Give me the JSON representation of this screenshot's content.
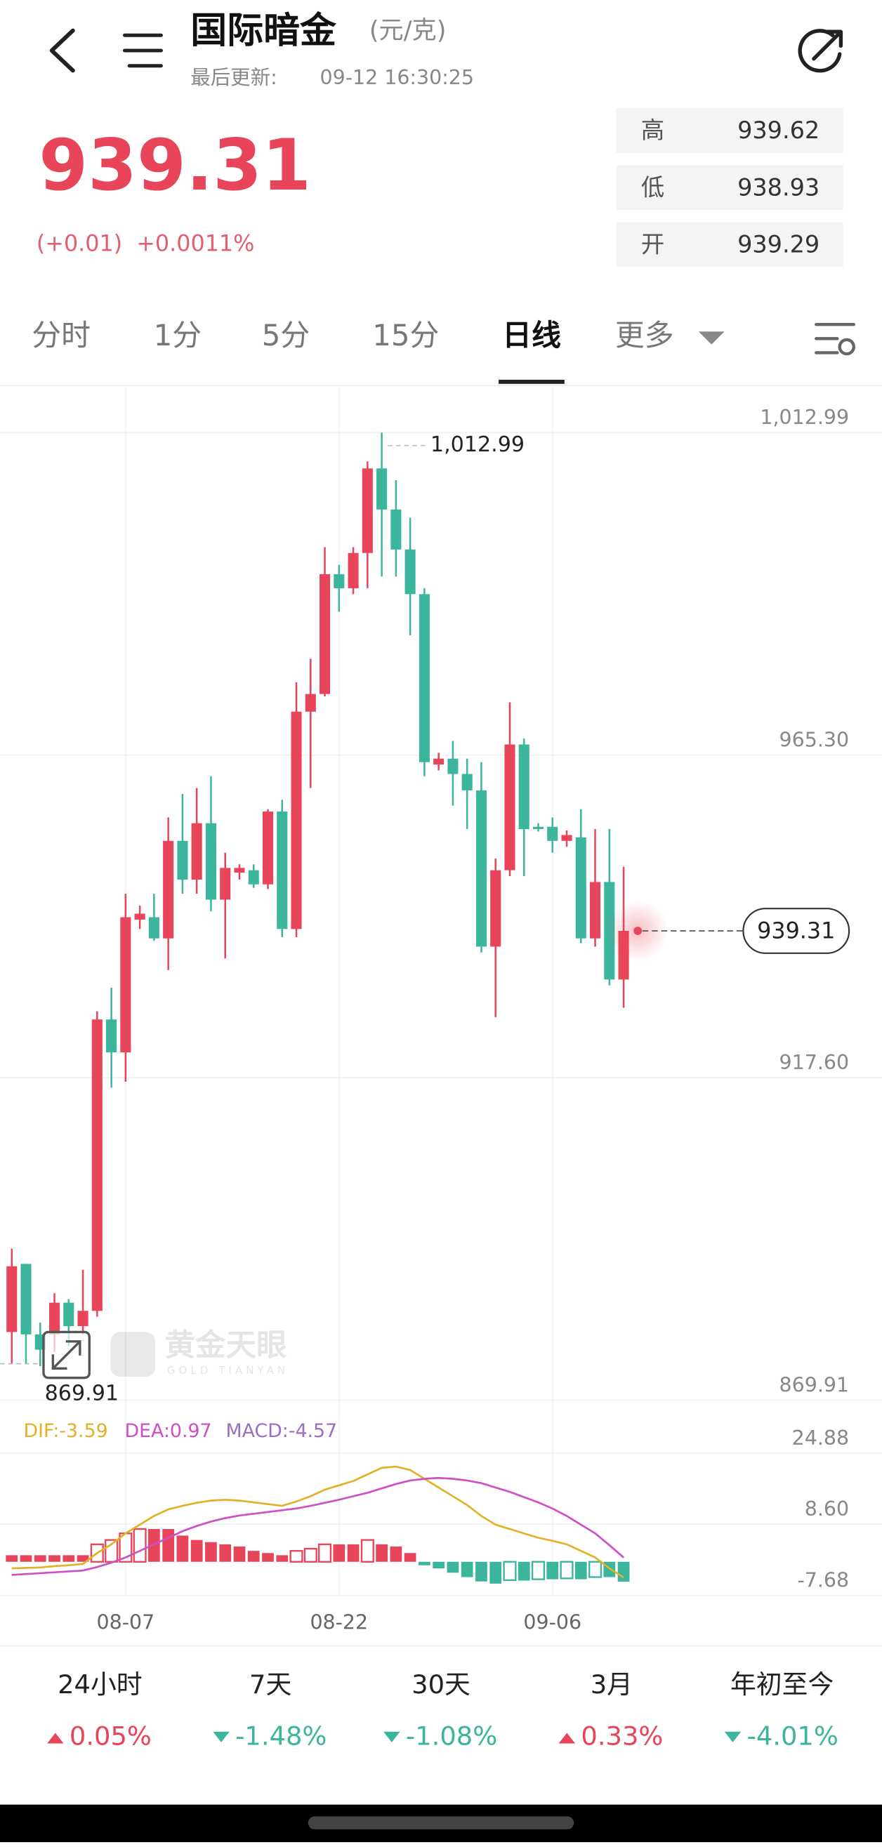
{
  "header": {
    "title": "国际暗金",
    "unit": "(元/克)",
    "updated_label": "最后更新:",
    "updated_time": "09-12 16:30:25"
  },
  "quote": {
    "price": "939.31",
    "change": "(+0.01)",
    "change_pct": "+0.0011%",
    "stats": [
      {
        "label": "高",
        "value": "939.62"
      },
      {
        "label": "低",
        "value": "938.93"
      },
      {
        "label": "开",
        "value": "939.29"
      }
    ]
  },
  "tabs": [
    "分时",
    "1分",
    "5分",
    "15分",
    "日线",
    "更多"
  ],
  "active_tab": 4,
  "watermark": {
    "title": "黄金天眼",
    "subtitle": "GOLD TIANYAN"
  },
  "chart_data": [
    {
      "type": "candlestick",
      "up_color": "#e8445a",
      "down_color": "#3bb59c",
      "grid": true,
      "ylim": [
        869.91,
        1012.99
      ],
      "yticks": [
        {
          "value": 1012.99,
          "label": "1,012.99"
        },
        {
          "value": 965.3,
          "label": "965.30"
        },
        {
          "value": 917.6,
          "label": "917.60"
        },
        869.91
      ],
      "open": [
        879.99,
        890.07,
        879.64,
        879.64,
        884.33,
        880.86,
        883.12,
        926.21,
        921.34,
        940.98,
        941.33,
        938.2,
        952.62,
        946.89,
        955.23,
        943.93,
        947.93,
        948.28,
        946.19,
        956.96,
        939.59,
        971.73,
        974.34,
        992.06,
        989.98,
        995.19,
        1007.7,
        1001.62,
        995.71,
        989.11,
        963.91,
        964.78,
        962.52,
        960.09,
        936.98,
        948.28,
        966.87,
        954.7,
        954.7,
        952.62,
        953.14,
        938.2,
        946.54,
        932.12
      ],
      "high": [
        892.32,
        890.07,
        881.38,
        885.72,
        884.85,
        889.2,
        927.42,
        930.9,
        944.8,
        943.06,
        944.8,
        956.09,
        959.57,
        960.44,
        962.18,
        950.88,
        949.15,
        949.15,
        957.31,
        958.7,
        976.08,
        979.55,
        996.06,
        993.45,
        996.06,
        1008.74,
        1012.99,
        1005.96,
        1000.4,
        989.98,
        965.65,
        967.39,
        964.78,
        964.26,
        950.01,
        973.12,
        967.74,
        955.23,
        956.09,
        954.18,
        957.31,
        954.36,
        954.36,
        948.8
      ],
      "low": [
        875.3,
        875.3,
        874.95,
        877.03,
        877.9,
        879.64,
        882.25,
        916.13,
        917.0,
        939.59,
        937.85,
        933.51,
        944.8,
        944.8,
        942.19,
        935.24,
        946.89,
        945.67,
        945.5,
        938.37,
        938.37,
        960.44,
        973.99,
        986.5,
        989.11,
        989.98,
        991.71,
        991.71,
        983.03,
        962.18,
        963.04,
        957.83,
        954.36,
        936.11,
        926.56,
        947.41,
        947.41,
        954.01,
        950.88,
        951.75,
        937.5,
        936.98,
        931.25,
        927.95
      ],
      "close": [
        889.72,
        879.64,
        877.38,
        884.33,
        880.86,
        883.12,
        926.21,
        921.34,
        941.33,
        941.85,
        938.2,
        952.62,
        946.89,
        955.23,
        943.93,
        948.62,
        948.62,
        946.19,
        956.96,
        939.59,
        971.73,
        974.34,
        992.06,
        989.98,
        995.19,
        1007.7,
        1001.62,
        995.71,
        989.11,
        964.26,
        964.78,
        962.52,
        960.09,
        936.98,
        948.28,
        966.87,
        954.36,
        954.36,
        952.62,
        953.49,
        938.2,
        946.54,
        932.12,
        939.31
      ],
      "max_label": {
        "value": 1012.99,
        "label": "1,012.99"
      },
      "min_value": 869.91,
      "last_value": 939.31
    },
    {
      "type": "macd",
      "up_color": "#e8445a",
      "down_color": "#3bb59c",
      "legend": [
        "DIF:-3.59",
        "DEA:0.97",
        "MACD:-4.57"
      ],
      "ylim": [
        -7.68,
        24.88
      ],
      "yticks": [
        24.88,
        {
          "value": 8.6,
          "label": "8.60"
        },
        -7.68
      ],
      "categories": [
        null,
        null,
        null,
        null,
        null,
        null,
        null,
        null,
        "08-07",
        null,
        null,
        null,
        null,
        null,
        null,
        null,
        null,
        null,
        null,
        null,
        null,
        null,
        null,
        "08-22",
        null,
        null,
        null,
        null,
        null,
        null,
        null,
        null,
        null,
        null,
        null,
        null,
        null,
        null,
        "09-06",
        null,
        null,
        null,
        null,
        null
      ],
      "series": [
        {
          "name": "DIF",
          "color": "#e2b126",
          "values": [
            -1.5,
            -1.4,
            -1.3,
            -1.0,
            -0.8,
            -0.5,
            2.0,
            4.0,
            6.5,
            8.5,
            10.5,
            12.0,
            12.8,
            13.5,
            14.0,
            14.2,
            14.0,
            13.6,
            13.2,
            12.8,
            13.8,
            15.0,
            16.5,
            17.5,
            18.5,
            20.0,
            21.5,
            21.8,
            21.0,
            19.0,
            17.0,
            15.0,
            13.0,
            10.5,
            8.5,
            7.5,
            6.5,
            5.5,
            4.8,
            4.0,
            2.5,
            1.0,
            -1.5,
            -3.59
          ]
        },
        {
          "name": "DEA",
          "color": "#cf4fc4",
          "values": [
            -3.0,
            -2.8,
            -2.6,
            -2.4,
            -2.2,
            -2.0,
            -1.2,
            -0.2,
            1.0,
            2.5,
            4.0,
            5.5,
            7.0,
            8.2,
            9.2,
            10.0,
            10.6,
            11.0,
            11.4,
            11.8,
            12.2,
            12.8,
            13.5,
            14.2,
            15.0,
            15.8,
            16.8,
            17.8,
            18.6,
            19.0,
            19.2,
            19.0,
            18.6,
            18.0,
            17.0,
            16.0,
            14.8,
            13.6,
            12.2,
            10.5,
            8.5,
            6.5,
            3.8,
            0.97
          ]
        },
        {
          "name": "MACD",
          "color": "#9a6fbf",
          "values": [
            1.5,
            1.5,
            1.5,
            1.5,
            1.5,
            1.5,
            4.0,
            5.0,
            6.5,
            7.5,
            7.5,
            7.5,
            6.0,
            5.0,
            4.5,
            4.0,
            3.5,
            2.5,
            2.0,
            1.5,
            2.5,
            3.0,
            4.0,
            4.0,
            4.0,
            5.0,
            4.0,
            3.5,
            2.0,
            -0.8,
            -1.5,
            -2.5,
            -3.5,
            -4.5,
            -5.0,
            -4.2,
            -4.3,
            -4.0,
            -4.0,
            -3.8,
            -4.0,
            -3.5,
            -3.5,
            -4.57
          ]
        }
      ]
    }
  ],
  "periods": [
    {
      "label": "24小时",
      "change": "0.05%",
      "dir": "up"
    },
    {
      "label": "7天",
      "change": "-1.48%",
      "dir": "down"
    },
    {
      "label": "30天",
      "change": "-1.08%",
      "dir": "down"
    },
    {
      "label": "3月",
      "change": "0.33%",
      "dir": "up"
    },
    {
      "label": "年初至今",
      "change": "-4.01%",
      "dir": "down"
    }
  ]
}
